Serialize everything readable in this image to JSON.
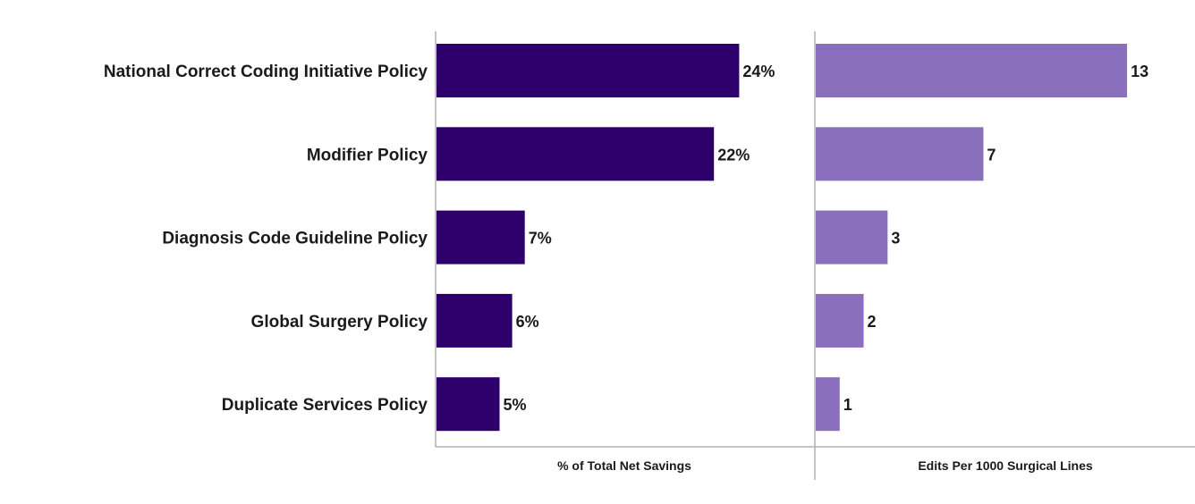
{
  "chart_data": [
    {
      "type": "bar",
      "orientation": "horizontal",
      "categories": [
        "National Correct Coding Initiative Policy",
        "Modifier Policy",
        "Diagnosis Code Guideline Policy",
        "Global Surgery Policy",
        "Duplicate Services Policy"
      ],
      "values": [
        24,
        22,
        7,
        6,
        5
      ],
      "value_labels": [
        "24%",
        "22%",
        "7%",
        "6%",
        "5%"
      ],
      "xlabel": "% of Total Net Savings",
      "xlim": [
        0,
        30
      ],
      "color": "#2e006c",
      "grid": false
    },
    {
      "type": "bar",
      "orientation": "horizontal",
      "categories": [
        "National Correct Coding Initiative Policy",
        "Modifier Policy",
        "Diagnosis Code Guideline Policy",
        "Global Surgery Policy",
        "Duplicate Services Policy"
      ],
      "values": [
        13,
        7,
        3,
        2,
        1
      ],
      "value_labels": [
        "13",
        "7",
        "3",
        "2",
        "1"
      ],
      "xlabel": "Edits Per 1000 Surgical Lines",
      "xlim": [
        0,
        15.5
      ],
      "color": "#8a70bc",
      "grid": false
    }
  ]
}
